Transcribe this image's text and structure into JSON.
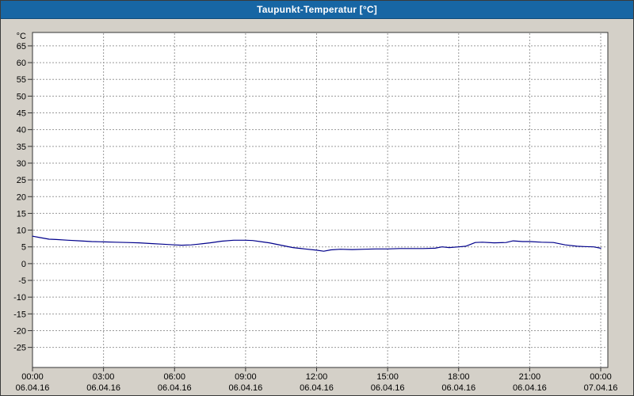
{
  "window": {
    "title": "Taupunkt-Temperatur [°C]"
  },
  "colors": {
    "titlebar_bg": "#1766a4",
    "background": "#d4d0c8",
    "plot_bg": "#ffffff",
    "grid": "#9a9a9a",
    "axis": "#333333",
    "line": "#00008b",
    "tick_text": "#000000"
  },
  "chart_data": {
    "type": "line",
    "title": "Taupunkt-Temperatur [°C]",
    "ylabel": "°C",
    "xlabel": "",
    "ylim": [
      -31,
      69
    ],
    "xlim_hours": [
      0,
      24.3
    ],
    "grid": true,
    "legend": "none",
    "y_ticks": [
      65,
      60,
      55,
      50,
      45,
      40,
      35,
      30,
      25,
      20,
      15,
      10,
      5,
      0,
      -5,
      -10,
      -15,
      -20,
      -25
    ],
    "x_ticks": [
      {
        "hour": 0,
        "time": "00:00",
        "date": "06.04.16"
      },
      {
        "hour": 3,
        "time": "03:00",
        "date": "06.04.16"
      },
      {
        "hour": 6,
        "time": "06:00",
        "date": "06.04.16"
      },
      {
        "hour": 9,
        "time": "09:00",
        "date": "06.04.16"
      },
      {
        "hour": 12,
        "time": "12:00",
        "date": "06.04.16"
      },
      {
        "hour": 15,
        "time": "15:00",
        "date": "06.04.16"
      },
      {
        "hour": 18,
        "time": "18:00",
        "date": "06.04.16"
      },
      {
        "hour": 21,
        "time": "21:00",
        "date": "06.04.16"
      },
      {
        "hour": 24,
        "time": "00:00",
        "date": "07.04.16"
      }
    ],
    "series": [
      {
        "name": "Taupunkt-Temperatur",
        "color": "#00008b",
        "points": [
          [
            0,
            8.2
          ],
          [
            0.3,
            7.8
          ],
          [
            0.7,
            7.3
          ],
          [
            1,
            7.2
          ],
          [
            1.5,
            7.0
          ],
          [
            2,
            6.8
          ],
          [
            2.5,
            6.6
          ],
          [
            3,
            6.5
          ],
          [
            3.5,
            6.4
          ],
          [
            4,
            6.3
          ],
          [
            4.5,
            6.2
          ],
          [
            5,
            6.0
          ],
          [
            5.5,
            5.8
          ],
          [
            6,
            5.6
          ],
          [
            6.3,
            5.5
          ],
          [
            6.7,
            5.6
          ],
          [
            7,
            5.8
          ],
          [
            7.5,
            6.2
          ],
          [
            8,
            6.7
          ],
          [
            8.5,
            7.0
          ],
          [
            9,
            7.0
          ],
          [
            9.3,
            6.9
          ],
          [
            9.7,
            6.5
          ],
          [
            10,
            6.2
          ],
          [
            10.5,
            5.5
          ],
          [
            11,
            4.8
          ],
          [
            11.5,
            4.4
          ],
          [
            12,
            4.0
          ],
          [
            12.3,
            3.7
          ],
          [
            12.6,
            4.1
          ],
          [
            13,
            4.3
          ],
          [
            13.5,
            4.2
          ],
          [
            14,
            4.3
          ],
          [
            14.5,
            4.4
          ],
          [
            15,
            4.4
          ],
          [
            15.5,
            4.5
          ],
          [
            16,
            4.5
          ],
          [
            16.5,
            4.5
          ],
          [
            17,
            4.6
          ],
          [
            17.3,
            5.0
          ],
          [
            17.6,
            4.8
          ],
          [
            18,
            5.0
          ],
          [
            18.3,
            5.2
          ],
          [
            18.7,
            6.3
          ],
          [
            19,
            6.4
          ],
          [
            19.5,
            6.2
          ],
          [
            20,
            6.3
          ],
          [
            20.3,
            6.8
          ],
          [
            20.7,
            6.6
          ],
          [
            21,
            6.6
          ],
          [
            21.5,
            6.4
          ],
          [
            22,
            6.3
          ],
          [
            22.5,
            5.6
          ],
          [
            23,
            5.2
          ],
          [
            23.3,
            5.1
          ],
          [
            23.7,
            5.0
          ],
          [
            24,
            4.6
          ]
        ]
      }
    ]
  }
}
